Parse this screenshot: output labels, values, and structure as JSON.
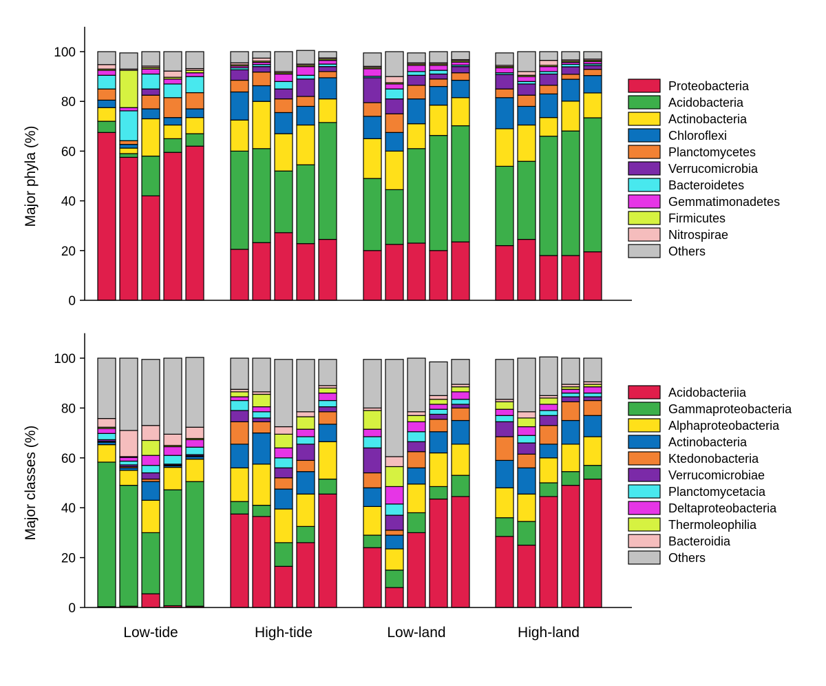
{
  "chart_data": [
    {
      "type": "bar",
      "stacked": true,
      "ylabel": "Major phyla (%)",
      "ylim": [
        0,
        110
      ],
      "yticks": [
        0,
        20,
        40,
        60,
        80,
        100
      ],
      "groups": [
        "Low-tide",
        "High-tide",
        "Low-land",
        "High-land"
      ],
      "bars_per_group": 5,
      "show_group_labels": false,
      "series": [
        {
          "name": "Proteobacteria",
          "color": "#E01E4B",
          "values": [
            67.5,
            57.5,
            42,
            59.5,
            62,
            20.5,
            23.2,
            27.2,
            22.8,
            24.5,
            20,
            22.5,
            23,
            20,
            23.5,
            22,
            24.5,
            18,
            18,
            19.5
          ]
        },
        {
          "name": "Acidobacteria",
          "color": "#3CAF4A",
          "values": [
            4.5,
            1.5,
            16,
            5.5,
            5,
            39.5,
            37.8,
            24.8,
            31.7,
            47,
            29,
            22,
            38,
            46.3,
            46.7,
            31.9,
            31.4,
            48,
            50.1,
            53.9
          ]
        },
        {
          "name": "Actinobacteria",
          "color": "#FFE01A",
          "values": [
            5.5,
            2.2,
            15,
            5.5,
            6.5,
            12.5,
            19,
            15,
            16,
            9.5,
            16,
            15.5,
            10,
            12.2,
            11.3,
            15.1,
            14.6,
            7.5,
            12,
            10
          ]
        },
        {
          "name": "Chloroflexi",
          "color": "#0B72BE",
          "values": [
            3,
            1.5,
            4,
            3,
            3.5,
            11.3,
            6.3,
            8.5,
            7.5,
            8.5,
            9,
            7.5,
            10,
            7.5,
            7,
            12.5,
            7.5,
            9.5,
            8.8,
            7
          ]
        },
        {
          "name": "Planctomycetes",
          "color": "#F28133",
          "values": [
            4.5,
            1.5,
            5.5,
            8,
            6.5,
            4.7,
            5.5,
            5.5,
            4,
            2.5,
            5.5,
            7.5,
            5.5,
            3,
            3,
            3.5,
            4.5,
            3.5,
            2,
            2.5
          ]
        },
        {
          "name": "Verrucomicrobia",
          "color": "#7B2AA8",
          "values": [
            0,
            0,
            2.5,
            0,
            0,
            4.2,
            2.2,
            4,
            7,
            2,
            10,
            6,
            4,
            2,
            2.5,
            5.8,
            4.5,
            4.5,
            3,
            1.5
          ]
        },
        {
          "name": "Bacteroidetes",
          "color": "#48E8EE",
          "values": [
            5.5,
            12,
            6,
            5.5,
            6.5,
            0.8,
            0.8,
            3,
            1.5,
            1,
            0.6,
            4,
            1.5,
            1.5,
            0.6,
            0.7,
            1,
            1,
            1,
            0.7
          ]
        },
        {
          "name": "Gemmatimonadetes",
          "color": "#E635E6",
          "values": [
            2,
            1.3,
            2,
            2,
            1.5,
            0.7,
            0.9,
            3,
            3.5,
            1.5,
            3,
            2,
            2.5,
            2,
            1.2,
            2,
            2,
            2,
            0.8,
            0.9
          ]
        },
        {
          "name": "Firmicutes",
          "color": "#D6F241",
          "values": [
            0.5,
            15,
            0.6,
            0.7,
            1,
            0.5,
            0.5,
            0.5,
            0.5,
            0.5,
            0.5,
            0.5,
            0.5,
            0.5,
            0.5,
            0.5,
            0.5,
            0.5,
            0.5,
            0.5
          ]
        },
        {
          "name": "Nitrospirae",
          "color": "#F5BDBD",
          "values": [
            1.8,
            0.5,
            0.6,
            2.5,
            0.7,
            0.8,
            1.2,
            0.5,
            0.5,
            0.5,
            0.5,
            2.5,
            0.5,
            0.5,
            0.5,
            0.5,
            1.5,
            2,
            0.5,
            0.5
          ]
        },
        {
          "name": "Others",
          "color": "#C2C2C2",
          "values": [
            5.2,
            6.5,
            5.8,
            7.8,
            6.8,
            4.5,
            2.6,
            8,
            5.5,
            2.5,
            5.4,
            10,
            4,
            4.5,
            3.2,
            5,
            8,
            3.5,
            3.3,
            3
          ]
        }
      ]
    },
    {
      "type": "bar",
      "stacked": true,
      "ylabel": "Major classes (%)",
      "ylim": [
        0,
        110
      ],
      "yticks": [
        0,
        20,
        40,
        60,
        80,
        100
      ],
      "groups": [
        "Low-tide",
        "High-tide",
        "Low-land",
        "High-land"
      ],
      "bars_per_group": 5,
      "show_group_labels": true,
      "series": [
        {
          "name": "Acidobacteriia",
          "color": "#E01E4B",
          "values": [
            0.3,
            0.5,
            5.5,
            0.7,
            0.5,
            37.5,
            36.5,
            16.5,
            26,
            45.5,
            24,
            8,
            30,
            43.5,
            44.5,
            28.5,
            25,
            44.5,
            49,
            51.5
          ]
        },
        {
          "name": "Gammaproteobacteria",
          "color": "#3CAF4A",
          "values": [
            58,
            48.5,
            24.5,
            46.5,
            50,
            5,
            4.5,
            9.5,
            6.5,
            6,
            5,
            7,
            8,
            5,
            8.5,
            7.5,
            9.5,
            5.5,
            5.5,
            5.5
          ]
        },
        {
          "name": "Alphaproteobacteria",
          "color": "#FFE01A",
          "values": [
            7,
            6,
            13,
            9,
            9,
            13.5,
            16.5,
            13.5,
            13,
            15,
            11.5,
            8.5,
            11.5,
            13.5,
            12.5,
            12,
            11,
            10,
            11,
            11.5
          ]
        },
        {
          "name": "Actinobacteria",
          "color": "#0B72BE",
          "values": [
            1,
            1,
            7.5,
            0.6,
            1,
            9.5,
            12.5,
            8,
            9,
            7,
            7.5,
            5.5,
            6.5,
            8.5,
            9.5,
            11,
            10.5,
            5.5,
            9.5,
            8.5
          ]
        },
        {
          "name": "Ktedonobacteria",
          "color": "#F28133",
          "values": [
            0.3,
            0.5,
            1,
            0.3,
            0.3,
            9,
            4.5,
            4.5,
            4.5,
            5,
            6,
            2,
            6.5,
            5,
            5,
            9.5,
            5.5,
            7.5,
            7.5,
            6
          ]
        },
        {
          "name": "Verrucomicrobiae",
          "color": "#7B2AA8",
          "values": [
            0.7,
            0.7,
            2.5,
            0.4,
            0.5,
            4.5,
            1.5,
            4,
            6.5,
            2,
            10,
            6,
            4,
            2,
            1.5,
            6,
            4.5,
            4,
            2,
            1.5
          ]
        },
        {
          "name": "Planctomycetacia",
          "color": "#48E8EE",
          "values": [
            2.5,
            1.5,
            3,
            3.5,
            3,
            4,
            2.5,
            4,
            3,
            2.5,
            4.5,
            4.5,
            4,
            2,
            2,
            2.5,
            3,
            2,
            1.5,
            1.5
          ]
        },
        {
          "name": "Deltaproteobacteria",
          "color": "#E635E6",
          "values": [
            2,
            1.5,
            4,
            3.5,
            3,
            1.5,
            2,
            4,
            3,
            3,
            3,
            7,
            4,
            2,
            3,
            2.5,
            3.5,
            2.5,
            1.5,
            2.5
          ]
        },
        {
          "name": "Thermoleophilia",
          "color": "#D6F241",
          "values": [
            0.5,
            0.3,
            6,
            0.5,
            0.5,
            2,
            5,
            5.5,
            5,
            2,
            7.5,
            8,
            2.5,
            2,
            2,
            3,
            3.5,
            2.5,
            1,
            1
          ]
        },
        {
          "name": "Bacteroidia",
          "color": "#F5BDBD",
          "values": [
            3.5,
            10.5,
            6,
            4.5,
            4.5,
            1,
            1,
            3,
            2,
            1,
            1,
            4,
            1.5,
            1.5,
            1,
            1,
            2.5,
            1,
            1,
            1
          ]
        },
        {
          "name": "Others",
          "color": "#C2C2C2",
          "values": [
            24.2,
            29,
            26.5,
            30.5,
            28,
            12.5,
            13.5,
            27,
            21,
            10.5,
            19.5,
            39,
            21.5,
            13.5,
            10,
            16,
            21.5,
            15.5,
            10.5,
            9.5
          ]
        }
      ]
    }
  ]
}
